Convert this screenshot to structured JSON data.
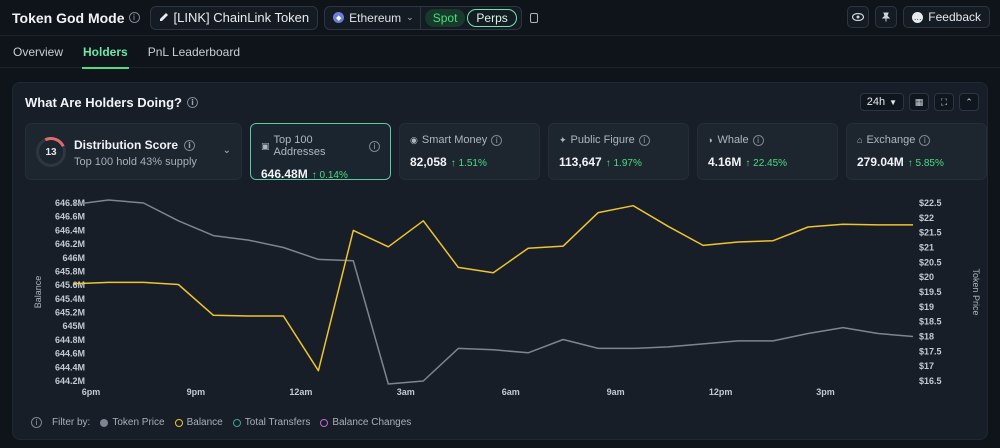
{
  "topbar": {
    "app_title": "Token God Mode",
    "token_label": "[LINK] ChainLink Token",
    "chain_label": "Ethereum",
    "spot_label": "Spot",
    "perps_label": "Perps",
    "feedback_label": "Feedback"
  },
  "tabs": [
    {
      "label": "Overview",
      "active": false
    },
    {
      "label": "Holders",
      "active": true
    },
    {
      "label": "PnL Leaderboard",
      "active": false
    }
  ],
  "panel": {
    "title": "What Are Holders Doing?",
    "range": "24h"
  },
  "distribution": {
    "score": "13",
    "title": "Distribution Score",
    "subtitle": "Top 100 hold 43% supply"
  },
  "metrics": [
    {
      "label": "Top 100 Addresses",
      "value": "646.48M",
      "change": "↑ 0.14%",
      "icon": "wallet-icon",
      "selected": true
    },
    {
      "label": "Smart Money",
      "value": "82,058",
      "change": "↑ 1.51%",
      "icon": "brain-icon",
      "selected": false
    },
    {
      "label": "Public Figure",
      "value": "113,647",
      "change": "↑ 1.97%",
      "icon": "star-icon",
      "selected": false
    },
    {
      "label": "Whale",
      "value": "4.16M",
      "change": "↑ 22.45%",
      "icon": "whale-icon",
      "selected": false
    },
    {
      "label": "Exchange",
      "value": "279.04M",
      "change": "↑ 5.85%",
      "icon": "bank-icon",
      "selected": false
    }
  ],
  "legend": {
    "filter_label": "Filter by:",
    "items": [
      {
        "label": "Token Price",
        "color": "#7c8591",
        "hollow": false
      },
      {
        "label": "Balance",
        "color": "#f0c330",
        "hollow": true
      },
      {
        "label": "Total Transfers",
        "color": "#3ea39a",
        "hollow": true
      },
      {
        "label": "Balance Changes",
        "color": "#c06bd0",
        "hollow": true
      }
    ]
  },
  "chart_data": {
    "type": "line",
    "x_ticks": [
      "6pm",
      "9pm",
      "12am",
      "3am",
      "6am",
      "9am",
      "12pm",
      "3pm"
    ],
    "ylabel_left": "Balance",
    "ylabel_right": "Token Price",
    "y_left_ticks": [
      "646.8M",
      "646.6M",
      "646.4M",
      "646.2M",
      "646M",
      "645.8M",
      "645.6M",
      "645.4M",
      "645.2M",
      "645M",
      "644.8M",
      "644.6M",
      "644.4M",
      "644.2M"
    ],
    "y_left_range": [
      644.2,
      646.8
    ],
    "y_right_ticks": [
      "$22.5",
      "$22",
      "$21.5",
      "$21",
      "$20.5",
      "$20",
      "$19.5",
      "$19",
      "$18.5",
      "$18",
      "$17.5",
      "$17",
      "$16.5"
    ],
    "y_right_range": [
      16.5,
      22.5
    ],
    "x_range": [
      0,
      23.5
    ],
    "series": [
      {
        "name": "Token Price",
        "axis": "right",
        "color": "#7c8591",
        "x": [
          -0.5,
          0.5,
          1.5,
          2.5,
          3.5,
          4.5,
          5.5,
          6.5,
          7.5,
          8.5,
          9.5,
          10.5,
          11.5,
          12.5,
          13.5,
          14.5,
          15.5,
          16.5,
          17.5,
          18.5,
          19.5,
          20.5,
          21.5,
          22.5,
          23.5
        ],
        "values": [
          22.45,
          22.6,
          22.5,
          21.9,
          21.4,
          21.25,
          21.0,
          20.6,
          20.55,
          16.4,
          16.5,
          17.6,
          17.55,
          17.45,
          17.9,
          17.6,
          17.6,
          17.65,
          17.75,
          17.85,
          17.85,
          18.1,
          18.3,
          18.1,
          18.0
        ]
      },
      {
        "name": "Balance",
        "axis": "left",
        "color": "#f0c330",
        "x": [
          -0.5,
          0.5,
          1.5,
          2.5,
          3.5,
          4.5,
          5.5,
          6.5,
          7.5,
          8.5,
          9.5,
          10.5,
          11.5,
          12.5,
          13.5,
          14.5,
          15.5,
          16.5,
          17.5,
          18.5,
          19.5,
          20.5,
          21.5,
          22.5,
          23.5
        ],
        "values": [
          645.62,
          645.64,
          645.64,
          645.61,
          645.16,
          645.15,
          645.15,
          644.35,
          646.4,
          646.16,
          646.54,
          645.86,
          645.78,
          646.14,
          646.17,
          646.66,
          646.76,
          646.46,
          646.18,
          646.23,
          646.25,
          646.45,
          646.49,
          646.48,
          646.48
        ]
      }
    ]
  }
}
